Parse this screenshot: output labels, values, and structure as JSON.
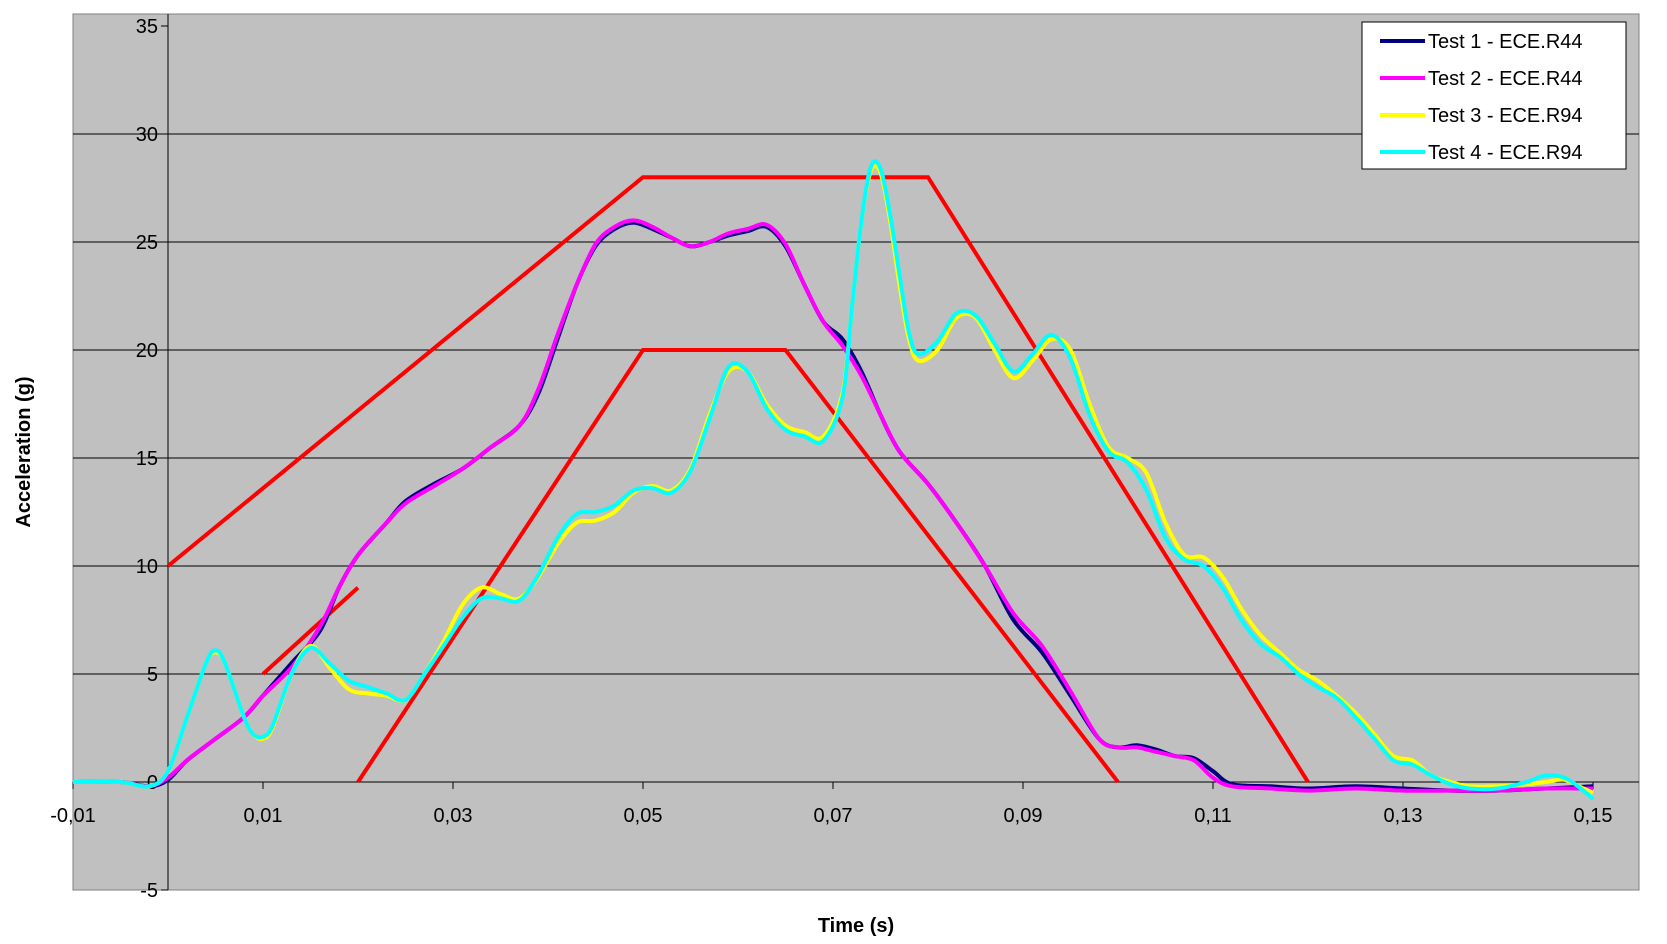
{
  "chart_data": {
    "type": "line",
    "title": "",
    "xlabel": "Time (s)",
    "ylabel": "Acceleration (g)",
    "xlim": [
      -0.01,
      0.15
    ],
    "ylim": [
      -5,
      35
    ],
    "x_tick_values": [
      -0.01,
      0.01,
      0.03,
      0.05,
      0.07,
      0.09,
      0.11,
      0.13,
      0.15
    ],
    "x_tick_labels": [
      "-0,01",
      "0,01",
      "0,03",
      "0,05",
      "0,07",
      "0,09",
      "0,11",
      "0,13",
      "0,15"
    ],
    "y_tick_values": [
      -5,
      0,
      5,
      10,
      15,
      20,
      25,
      30,
      35
    ],
    "y_tick_labels": [
      "-5",
      "0",
      "5",
      "10",
      "15",
      "20",
      "25",
      "30",
      "35"
    ],
    "grid": "horizontal",
    "plot_background": "#c0c0c0",
    "legend_position": "top-right",
    "series": [
      {
        "name": "Test 1 - ECE.R44",
        "color": "#000080",
        "points": [
          [
            -0.01,
            0
          ],
          [
            -0.005,
            0
          ],
          [
            -0.002,
            -0.2
          ],
          [
            0,
            0.1
          ],
          [
            0.002,
            1
          ],
          [
            0.005,
            2
          ],
          [
            0.008,
            3
          ],
          [
            0.01,
            4
          ],
          [
            0.013,
            5.5
          ],
          [
            0.016,
            7
          ],
          [
            0.018,
            9
          ],
          [
            0.02,
            10.5
          ],
          [
            0.023,
            12
          ],
          [
            0.025,
            13
          ],
          [
            0.028,
            13.8
          ],
          [
            0.031,
            14.5
          ],
          [
            0.034,
            15.5
          ],
          [
            0.037,
            16.5
          ],
          [
            0.039,
            18
          ],
          [
            0.041,
            20.5
          ],
          [
            0.043,
            23
          ],
          [
            0.045,
            24.8
          ],
          [
            0.047,
            25.6
          ],
          [
            0.049,
            25.9
          ],
          [
            0.051,
            25.6
          ],
          [
            0.053,
            25.2
          ],
          [
            0.055,
            24.8
          ],
          [
            0.057,
            25
          ],
          [
            0.059,
            25.3
          ],
          [
            0.061,
            25.5
          ],
          [
            0.063,
            25.7
          ],
          [
            0.065,
            24.8
          ],
          [
            0.067,
            23
          ],
          [
            0.069,
            21.3
          ],
          [
            0.071,
            20.5
          ],
          [
            0.073,
            19
          ],
          [
            0.075,
            17
          ],
          [
            0.077,
            15.3
          ],
          [
            0.08,
            13.8
          ],
          [
            0.083,
            12
          ],
          [
            0.086,
            10
          ],
          [
            0.089,
            7.5
          ],
          [
            0.092,
            6
          ],
          [
            0.095,
            4
          ],
          [
            0.098,
            2
          ],
          [
            0.1,
            1.6
          ],
          [
            0.102,
            1.7
          ],
          [
            0.104,
            1.5
          ],
          [
            0.106,
            1.2
          ],
          [
            0.108,
            1.1
          ],
          [
            0.11,
            0.5
          ],
          [
            0.112,
            -0.1
          ],
          [
            0.116,
            -0.2
          ],
          [
            0.12,
            -0.3
          ],
          [
            0.125,
            -0.2
          ],
          [
            0.13,
            -0.3
          ],
          [
            0.135,
            -0.4
          ],
          [
            0.14,
            -0.4
          ],
          [
            0.145,
            -0.3
          ],
          [
            0.15,
            -0.2
          ]
        ]
      },
      {
        "name": "Test 2 - ECE.R44",
        "color": "#ff00ff",
        "points": [
          [
            -0.01,
            0
          ],
          [
            -0.005,
            0
          ],
          [
            -0.002,
            -0.2
          ],
          [
            0,
            0.2
          ],
          [
            0.002,
            1
          ],
          [
            0.005,
            2
          ],
          [
            0.008,
            3
          ],
          [
            0.01,
            4
          ],
          [
            0.013,
            5.3
          ],
          [
            0.016,
            7.2
          ],
          [
            0.018,
            9
          ],
          [
            0.02,
            10.5
          ],
          [
            0.023,
            12
          ],
          [
            0.025,
            12.9
          ],
          [
            0.028,
            13.7
          ],
          [
            0.031,
            14.5
          ],
          [
            0.034,
            15.5
          ],
          [
            0.037,
            16.5
          ],
          [
            0.039,
            18.2
          ],
          [
            0.041,
            20.7
          ],
          [
            0.043,
            23
          ],
          [
            0.045,
            24.9
          ],
          [
            0.047,
            25.7
          ],
          [
            0.049,
            26
          ],
          [
            0.051,
            25.7
          ],
          [
            0.053,
            25.2
          ],
          [
            0.055,
            24.8
          ],
          [
            0.057,
            25
          ],
          [
            0.059,
            25.4
          ],
          [
            0.061,
            25.6
          ],
          [
            0.063,
            25.8
          ],
          [
            0.065,
            24.9
          ],
          [
            0.067,
            23
          ],
          [
            0.069,
            21.3
          ],
          [
            0.071,
            20.2
          ],
          [
            0.073,
            18.8
          ],
          [
            0.075,
            17
          ],
          [
            0.077,
            15.3
          ],
          [
            0.08,
            13.8
          ],
          [
            0.083,
            12
          ],
          [
            0.086,
            10
          ],
          [
            0.089,
            7.8
          ],
          [
            0.092,
            6.3
          ],
          [
            0.095,
            4.2
          ],
          [
            0.098,
            2
          ],
          [
            0.1,
            1.6
          ],
          [
            0.102,
            1.6
          ],
          [
            0.104,
            1.4
          ],
          [
            0.106,
            1.2
          ],
          [
            0.108,
            1
          ],
          [
            0.11,
            0.2
          ],
          [
            0.112,
            -0.2
          ],
          [
            0.116,
            -0.3
          ],
          [
            0.12,
            -0.4
          ],
          [
            0.125,
            -0.3
          ],
          [
            0.13,
            -0.4
          ],
          [
            0.135,
            -0.4
          ],
          [
            0.14,
            -0.4
          ],
          [
            0.145,
            -0.3
          ],
          [
            0.15,
            -0.3
          ]
        ]
      },
      {
        "name": "Test 3 - ECE.R94",
        "color": "#ffff00",
        "points": [
          [
            -0.01,
            0
          ],
          [
            -0.005,
            0
          ],
          [
            -0.002,
            -0.2
          ],
          [
            0,
            0.5
          ],
          [
            0.002,
            3
          ],
          [
            0.004,
            5.5
          ],
          [
            0.005,
            6
          ],
          [
            0.006,
            5.5
          ],
          [
            0.008,
            3
          ],
          [
            0.009,
            2.2
          ],
          [
            0.01,
            2
          ],
          [
            0.011,
            2.5
          ],
          [
            0.013,
            5
          ],
          [
            0.015,
            6.3
          ],
          [
            0.017,
            5.3
          ],
          [
            0.019,
            4.3
          ],
          [
            0.021,
            4.1
          ],
          [
            0.023,
            4
          ],
          [
            0.025,
            3.8
          ],
          [
            0.027,
            5
          ],
          [
            0.029,
            6.5
          ],
          [
            0.031,
            8.2
          ],
          [
            0.033,
            9
          ],
          [
            0.035,
            8.7
          ],
          [
            0.037,
            8.5
          ],
          [
            0.039,
            9.5
          ],
          [
            0.041,
            11
          ],
          [
            0.043,
            12
          ],
          [
            0.045,
            12.1
          ],
          [
            0.047,
            12.5
          ],
          [
            0.049,
            13.4
          ],
          [
            0.051,
            13.7
          ],
          [
            0.053,
            13.5
          ],
          [
            0.055,
            14.5
          ],
          [
            0.057,
            17
          ],
          [
            0.059,
            19
          ],
          [
            0.061,
            19
          ],
          [
            0.063,
            17.5
          ],
          [
            0.065,
            16.5
          ],
          [
            0.067,
            16.2
          ],
          [
            0.069,
            16
          ],
          [
            0.071,
            18
          ],
          [
            0.072,
            22
          ],
          [
            0.073,
            26
          ],
          [
            0.074,
            28.3
          ],
          [
            0.075,
            28.2
          ],
          [
            0.076,
            26
          ],
          [
            0.077,
            23
          ],
          [
            0.078,
            20.5
          ],
          [
            0.079,
            19.5
          ],
          [
            0.081,
            20
          ],
          [
            0.083,
            21.5
          ],
          [
            0.085,
            21.5
          ],
          [
            0.087,
            20
          ],
          [
            0.089,
            18.7
          ],
          [
            0.091,
            19.5
          ],
          [
            0.093,
            20.5
          ],
          [
            0.095,
            20
          ],
          [
            0.097,
            17.5
          ],
          [
            0.099,
            15.5
          ],
          [
            0.101,
            15
          ],
          [
            0.103,
            14.3
          ],
          [
            0.105,
            12
          ],
          [
            0.107,
            10.5
          ],
          [
            0.109,
            10.4
          ],
          [
            0.111,
            9.5
          ],
          [
            0.113,
            8
          ],
          [
            0.115,
            6.8
          ],
          [
            0.117,
            6
          ],
          [
            0.119,
            5.2
          ],
          [
            0.121,
            4.7
          ],
          [
            0.123,
            4
          ],
          [
            0.125,
            3.2
          ],
          [
            0.127,
            2.2
          ],
          [
            0.129,
            1.2
          ],
          [
            0.131,
            1
          ],
          [
            0.133,
            0.3
          ],
          [
            0.135,
            0
          ],
          [
            0.137,
            -0.2
          ],
          [
            0.14,
            -0.2
          ],
          [
            0.143,
            -0.1
          ],
          [
            0.145,
            0
          ],
          [
            0.147,
            0.1
          ],
          [
            0.149,
            -0.3
          ],
          [
            0.15,
            -0.5
          ]
        ]
      },
      {
        "name": "Test 4 - ECE.R94",
        "color": "#00ffff",
        "points": [
          [
            -0.01,
            0
          ],
          [
            -0.005,
            0
          ],
          [
            -0.002,
            -0.2
          ],
          [
            0,
            0.5
          ],
          [
            0.002,
            3
          ],
          [
            0.004,
            5.5
          ],
          [
            0.005,
            6.1
          ],
          [
            0.006,
            5.5
          ],
          [
            0.008,
            3
          ],
          [
            0.009,
            2.2
          ],
          [
            0.01,
            2.1
          ],
          [
            0.011,
            2.6
          ],
          [
            0.013,
            5
          ],
          [
            0.015,
            6.2
          ],
          [
            0.017,
            5.5
          ],
          [
            0.019,
            4.7
          ],
          [
            0.021,
            4.4
          ],
          [
            0.023,
            4.1
          ],
          [
            0.025,
            3.8
          ],
          [
            0.027,
            5
          ],
          [
            0.029,
            6.3
          ],
          [
            0.031,
            7.6
          ],
          [
            0.033,
            8.5
          ],
          [
            0.035,
            8.5
          ],
          [
            0.037,
            8.4
          ],
          [
            0.039,
            9.6
          ],
          [
            0.041,
            11.3
          ],
          [
            0.043,
            12.4
          ],
          [
            0.045,
            12.5
          ],
          [
            0.047,
            12.8
          ],
          [
            0.049,
            13.5
          ],
          [
            0.051,
            13.6
          ],
          [
            0.053,
            13.4
          ],
          [
            0.055,
            14.4
          ],
          [
            0.057,
            16.8
          ],
          [
            0.059,
            19.2
          ],
          [
            0.061,
            19
          ],
          [
            0.063,
            17.3
          ],
          [
            0.065,
            16.3
          ],
          [
            0.067,
            16
          ],
          [
            0.069,
            15.8
          ],
          [
            0.071,
            17.8
          ],
          [
            0.072,
            22
          ],
          [
            0.073,
            26
          ],
          [
            0.074,
            28.5
          ],
          [
            0.075,
            28.4
          ],
          [
            0.076,
            26.3
          ],
          [
            0.077,
            23.5
          ],
          [
            0.078,
            20.8
          ],
          [
            0.079,
            19.8
          ],
          [
            0.081,
            20.4
          ],
          [
            0.083,
            21.7
          ],
          [
            0.085,
            21.6
          ],
          [
            0.087,
            20.3
          ],
          [
            0.089,
            19
          ],
          [
            0.091,
            19.8
          ],
          [
            0.093,
            20.7
          ],
          [
            0.095,
            19.6
          ],
          [
            0.097,
            17
          ],
          [
            0.099,
            15.3
          ],
          [
            0.101,
            14.8
          ],
          [
            0.103,
            13.5
          ],
          [
            0.105,
            11.3
          ],
          [
            0.107,
            10.3
          ],
          [
            0.109,
            10
          ],
          [
            0.111,
            9
          ],
          [
            0.113,
            7.5
          ],
          [
            0.115,
            6.4
          ],
          [
            0.117,
            5.8
          ],
          [
            0.119,
            5
          ],
          [
            0.121,
            4.4
          ],
          [
            0.123,
            3.9
          ],
          [
            0.125,
            3
          ],
          [
            0.127,
            2
          ],
          [
            0.129,
            1
          ],
          [
            0.131,
            0.8
          ],
          [
            0.133,
            0.3
          ],
          [
            0.135,
            -0.1
          ],
          [
            0.137,
            -0.3
          ],
          [
            0.14,
            -0.3
          ],
          [
            0.143,
            0
          ],
          [
            0.145,
            0.3
          ],
          [
            0.147,
            0.2
          ],
          [
            0.149,
            -0.4
          ],
          [
            0.15,
            -0.8
          ]
        ]
      }
    ],
    "corridors": [
      {
        "color": "#ff0000",
        "segments": [
          [
            [
              0,
              10
            ],
            [
              0.05,
              28
            ],
            [
              0.08,
              28
            ],
            [
              0.12,
              0
            ]
          ],
          [
            [
              0.02,
              0
            ],
            [
              0.05,
              20
            ],
            [
              0.065,
              20
            ],
            [
              0.1,
              0
            ]
          ],
          [
            [
              0.01,
              5
            ],
            [
              0.02,
              9
            ]
          ]
        ]
      }
    ]
  }
}
